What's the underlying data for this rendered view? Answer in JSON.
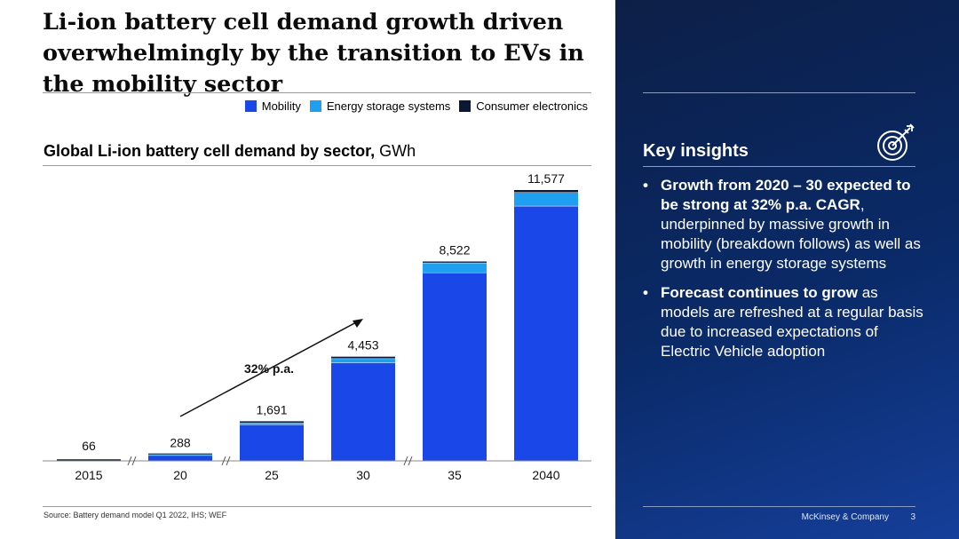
{
  "title": "Li-ion battery cell demand growth driven overwhelmingly by the transition to EVs in the mobility sector",
  "legend": [
    {
      "label": "Mobility",
      "color": "#1a47e8"
    },
    {
      "label": "Energy storage systems",
      "color": "#1e9ff0"
    },
    {
      "label": "Consumer electronics",
      "color": "#0b1833"
    }
  ],
  "chart_heading": {
    "bold": "Global Li-ion battery cell demand by sector,",
    "unit": "GWh"
  },
  "chart_data": {
    "type": "bar",
    "stacked": true,
    "categories": [
      "2015",
      "20",
      "25",
      "30",
      "35",
      "2040"
    ],
    "totals": [
      66,
      288,
      1691,
      4453,
      8522,
      11577
    ],
    "total_labels": [
      "66",
      "288",
      "1,691",
      "4,453",
      "8,522",
      "11,577"
    ],
    "series": [
      {
        "name": "Mobility",
        "color": "#1a47e8",
        "values": [
          0,
          240,
          1550,
          4200,
          8050,
          10900
        ]
      },
      {
        "name": "Energy storage systems",
        "color": "#1e9ff0",
        "values": [
          0,
          10,
          80,
          180,
          420,
          580
        ]
      },
      {
        "name": "Consumer electronics",
        "color": "#0b1833",
        "values": [
          66,
          38,
          61,
          73,
          52,
          97
        ]
      }
    ],
    "ylim": [
      0,
      11577
    ],
    "annotation": "32% p.a.",
    "axis_breaks": true
  },
  "source": "Source: Battery demand model Q1 2022, IHS; WEF",
  "insights": {
    "heading": "Key insights",
    "icon": "target-icon",
    "bullets": [
      {
        "bullet": "•",
        "bold": "Growth from 2020 – 30 expected to be strong at 32% p.a. CAGR",
        "rest": ", underpinned by massive growth in mobility (breakdown follows) as well as growth in energy storage systems"
      },
      {
        "bullet": "•",
        "bold": "Forecast continues to grow",
        "rest": " as models are refreshed at a regular basis due to increased expectations of Electric Vehicle adoption"
      }
    ]
  },
  "footer": {
    "company": "McKinsey & Company",
    "page": "3"
  }
}
